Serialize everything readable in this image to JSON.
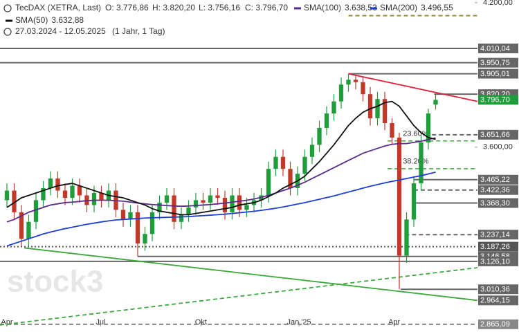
{
  "chart_data": {
    "type": "candlestick",
    "title": "TecDAX (XETRA, Last)",
    "ohlc_labels": [
      "O: 3.776,86",
      "H: 3.820,20",
      "L: 3.756,16",
      "C: 3.796,70"
    ],
    "date_range": "27.03.2024 - 12.05.2025",
    "period": "(1 Jahr, 1 Tag)",
    "watermark": "stock3",
    "up_color": "#1f9d3a",
    "down_color": "#c0392b",
    "x": [
      0,
      1,
      2,
      3,
      4,
      5,
      6,
      7,
      8,
      9,
      10,
      11,
      12,
      13,
      14,
      15,
      16,
      17,
      18,
      19,
      20,
      21,
      22,
      23,
      24,
      25,
      26,
      27,
      28,
      29,
      30,
      31,
      32,
      33,
      34,
      35,
      36,
      37,
      38,
      39,
      40,
      41,
      42,
      43,
      44,
      45,
      46,
      47,
      48,
      49,
      50,
      51,
      52,
      53,
      54,
      55,
      56,
      57,
      58,
      59
    ],
    "open": [
      3380,
      3420,
      3330,
      3220,
      3290,
      3380,
      3430,
      3470,
      3420,
      3390,
      3440,
      3400,
      3360,
      3410,
      3380,
      3420,
      3340,
      3300,
      3330,
      3200,
      3240,
      3330,
      3370,
      3400,
      3290,
      3320,
      3350,
      3380,
      3370,
      3400,
      3390,
      3330,
      3400,
      3340,
      3360,
      3380,
      3400,
      3510,
      3560,
      3510,
      3430,
      3490,
      3560,
      3610,
      3680,
      3740,
      3790,
      3860,
      3880,
      3870,
      3820,
      3720,
      3800,
      3700,
      3640,
      3150,
      3300,
      3450,
      3620,
      3776.86
    ],
    "high": [
      3450,
      3450,
      3360,
      3320,
      3410,
      3460,
      3500,
      3500,
      3450,
      3470,
      3470,
      3430,
      3440,
      3440,
      3450,
      3450,
      3370,
      3360,
      3360,
      3270,
      3360,
      3400,
      3430,
      3430,
      3350,
      3380,
      3410,
      3410,
      3430,
      3430,
      3420,
      3430,
      3430,
      3390,
      3410,
      3430,
      3540,
      3590,
      3590,
      3540,
      3520,
      3590,
      3640,
      3710,
      3770,
      3820,
      3890,
      3905,
      3900,
      3890,
      3850,
      3830,
      3830,
      3720,
      3660,
      3330,
      3480,
      3650,
      3760,
      3820.2
    ],
    "low": [
      3350,
      3300,
      3190,
      3187.26,
      3260,
      3350,
      3400,
      3390,
      3360,
      3360,
      3370,
      3330,
      3330,
      3350,
      3350,
      3310,
      3270,
      3270,
      3146.58,
      3170,
      3210,
      3300,
      3340,
      3260,
      3260,
      3290,
      3320,
      3340,
      3340,
      3360,
      3300,
      3300,
      3310,
      3310,
      3330,
      3350,
      3370,
      3480,
      3480,
      3400,
      3400,
      3460,
      3530,
      3580,
      3650,
      3710,
      3760,
      3830,
      3840,
      3790,
      3690,
      3690,
      3670,
      3610,
      3010.36,
      3120,
      3270,
      3420,
      3590,
      3756.16
    ],
    "close": [
      3420,
      3330,
      3220,
      3290,
      3380,
      3430,
      3470,
      3420,
      3390,
      3440,
      3400,
      3360,
      3410,
      3380,
      3420,
      3340,
      3300,
      3330,
      3200,
      3240,
      3330,
      3370,
      3400,
      3290,
      3320,
      3350,
      3380,
      3370,
      3400,
      3390,
      3330,
      3400,
      3340,
      3360,
      3380,
      3400,
      3510,
      3560,
      3510,
      3430,
      3490,
      3560,
      3610,
      3680,
      3740,
      3790,
      3860,
      3880,
      3870,
      3820,
      3720,
      3800,
      3700,
      3640,
      3150,
      3300,
      3450,
      3620,
      3740,
      3796.7
    ],
    "last_price_label": "3.796,70",
    "series": [
      {
        "name": "SMA(100)",
        "last_label": "3.638,53",
        "color": "#5b2a8e",
        "values": [
          3290,
          3300,
          3315,
          3330,
          3340,
          3350,
          3360,
          3365,
          3370,
          3372,
          3375,
          3378,
          3380,
          3380,
          3380,
          3378,
          3376,
          3372,
          3368,
          3365,
          3362,
          3360,
          3358,
          3356,
          3355,
          3356,
          3358,
          3360,
          3362,
          3365,
          3368,
          3372,
          3376,
          3380,
          3385,
          3392,
          3400,
          3410,
          3420,
          3430,
          3442,
          3455,
          3470,
          3485,
          3500,
          3515,
          3530,
          3545,
          3560,
          3575,
          3585,
          3595,
          3605,
          3612,
          3615,
          3615,
          3620,
          3625,
          3632,
          3638.53
        ]
      },
      {
        "name": "SMA(200)",
        "last_label": "3.496,55",
        "color": "#1f3fcf",
        "values": [
          3190,
          3200,
          3210,
          3220,
          3230,
          3240,
          3248,
          3255,
          3262,
          3268,
          3274,
          3280,
          3285,
          3290,
          3294,
          3298,
          3300,
          3302,
          3304,
          3306,
          3307,
          3308,
          3309,
          3310,
          3311,
          3312,
          3314,
          3316,
          3318,
          3320,
          3322,
          3325,
          3328,
          3331,
          3334,
          3338,
          3342,
          3347,
          3352,
          3358,
          3364,
          3370,
          3377,
          3384,
          3391,
          3398,
          3406,
          3414,
          3422,
          3430,
          3438,
          3445,
          3452,
          3458,
          3464,
          3470,
          3476,
          3482,
          3489,
          3496.55
        ]
      },
      {
        "name": "SMA(50)",
        "last_label": "3.632,88",
        "color": "#111111",
        "values": [
          3350,
          3370,
          3390,
          3400,
          3410,
          3420,
          3430,
          3440,
          3445,
          3450,
          3440,
          3430,
          3420,
          3410,
          3400,
          3395,
          3390,
          3380,
          3370,
          3360,
          3345,
          3335,
          3330,
          3325,
          3320,
          3320,
          3325,
          3330,
          3335,
          3340,
          3345,
          3350,
          3360,
          3365,
          3370,
          3380,
          3395,
          3410,
          3430,
          3445,
          3460,
          3480,
          3510,
          3540,
          3575,
          3610,
          3650,
          3690,
          3720,
          3745,
          3760,
          3770,
          3785,
          3790,
          3770,
          3730,
          3690,
          3660,
          3640,
          3632.88
        ]
      }
    ],
    "levels": [
      {
        "value": 4146,
        "from": 47,
        "style": "dashed",
        "color": "#9a8a2a"
      },
      {
        "value": 4010.04,
        "label": "4.010,04",
        "from": -0.95,
        "style": "solid",
        "color": "#666666"
      },
      {
        "value": 3950.75,
        "label": "3.950,75",
        "from": -0.95,
        "style": "solid",
        "color": "#666666"
      },
      {
        "value": 3905.01,
        "label": "3.905,01",
        "from": 47,
        "style": "solid",
        "color": "#666666"
      },
      {
        "value": 3820.2,
        "label": "3.820,20",
        "from": 58.8,
        "style": "solid",
        "color": "#666666"
      },
      {
        "value": 3651.66,
        "label": "3.651,66",
        "from": 58.5,
        "style": "dashed",
        "color": "#666666"
      },
      {
        "value": 3465.22,
        "label": "3.465,22",
        "from": 56,
        "style": "solid",
        "color": "#666666"
      },
      {
        "value": 3422.36,
        "label": "3.422,36",
        "from": 56,
        "style": "dashed",
        "color": "#666666"
      },
      {
        "value": 3368.3,
        "label": "3.368,30",
        "from": 55.8,
        "style": "solid",
        "color": "#666666"
      },
      {
        "value": 3237.14,
        "label": "3.237,14",
        "from": 54.8,
        "style": "dashed",
        "color": "#666666"
      },
      {
        "value": 3187.26,
        "label": "3.187,26",
        "from": -0.95,
        "style": "dotted",
        "color": "#555555"
      },
      {
        "value": 3146.58,
        "label": "3.146,58",
        "from": 18,
        "style": "solid",
        "color": "#666666"
      },
      {
        "value": 3126.1,
        "label": "3.126,10",
        "from": -0.95,
        "style": "solid",
        "color": "#666666"
      },
      {
        "value": 3010.36,
        "label": "3.010,36",
        "from": 54.2,
        "style": "solid",
        "color": "#666666"
      },
      {
        "value": 2865.09,
        "label": "2.865,09",
        "from": -0.95,
        "style": "dashed",
        "color": "#888888"
      }
    ],
    "fib_levels": [
      {
        "value": 3626,
        "label": "23.60%",
        "from": 52.4
      },
      {
        "value": 3511,
        "label": "38.20%",
        "from": 52.4
      }
    ],
    "fib_color": "#3aa83a",
    "trendlines": [
      {
        "color": "#e0203a",
        "style": "solid",
        "x": [
          47,
          64.76
        ],
        "y": [
          3905,
          3790
        ]
      },
      {
        "color": "#3aa83a",
        "style": "solid",
        "x": [
          2.4,
          64.76
        ],
        "y": [
          3182,
          2964.15
        ],
        "label": "2.964,15"
      },
      {
        "color": "#3aa83a",
        "style": "dashed",
        "x": [
          -0.95,
          64.76
        ],
        "y": [
          2862,
          3100
        ]
      }
    ],
    "xlim": [
      -0.95,
      64.76
    ],
    "ylim": [
      2833,
      4211
    ],
    "yticks": [
      {
        "value": 4200,
        "label": "4.200,00"
      },
      {
        "value": 3600,
        "label": "3.600,00"
      }
    ],
    "xticks": [
      {
        "value": 0,
        "label": "Apr"
      },
      {
        "value": 12.9,
        "label": "Jul"
      },
      {
        "value": 26.7,
        "label": "Okt"
      },
      {
        "value": 40.2,
        "label": "Jan '25"
      },
      {
        "value": 53.3,
        "label": "Apr"
      }
    ]
  }
}
